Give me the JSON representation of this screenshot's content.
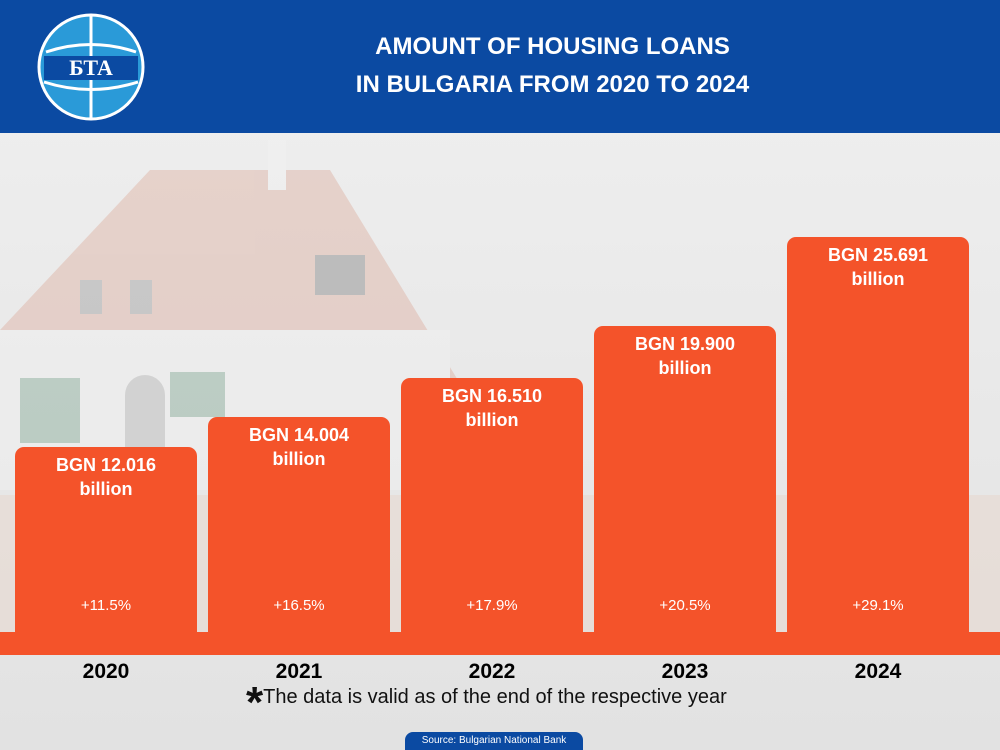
{
  "logo": "БТА",
  "chart_data": {
    "type": "bar",
    "title": [
      "AMOUNT OF HOUSING LOANS",
      "IN BULGARIA FROM 2020 TO 2024"
    ],
    "categories": [
      "2020",
      "2021",
      "2022",
      "2023",
      "2024"
    ],
    "values": [
      12.016,
      14.004,
      16.51,
      19.9,
      25.691
    ],
    "value_labels": [
      "BGN 12.016 billion",
      "BGN 14.004 billion",
      "BGN 16.510 billion",
      "BGN 19.900 billion",
      "BGN 25.691 billion"
    ],
    "growth_labels": [
      "+11.5%",
      "+16.5%",
      "+17.9%",
      "+20.5%",
      "+29.1%"
    ],
    "color": "#f4532a",
    "ylim": [
      0,
      26
    ],
    "footnote_marker": "*",
    "footnote": "The data is valid as of the end of the respective year",
    "source": "Source: Bulgarian National Bank"
  }
}
